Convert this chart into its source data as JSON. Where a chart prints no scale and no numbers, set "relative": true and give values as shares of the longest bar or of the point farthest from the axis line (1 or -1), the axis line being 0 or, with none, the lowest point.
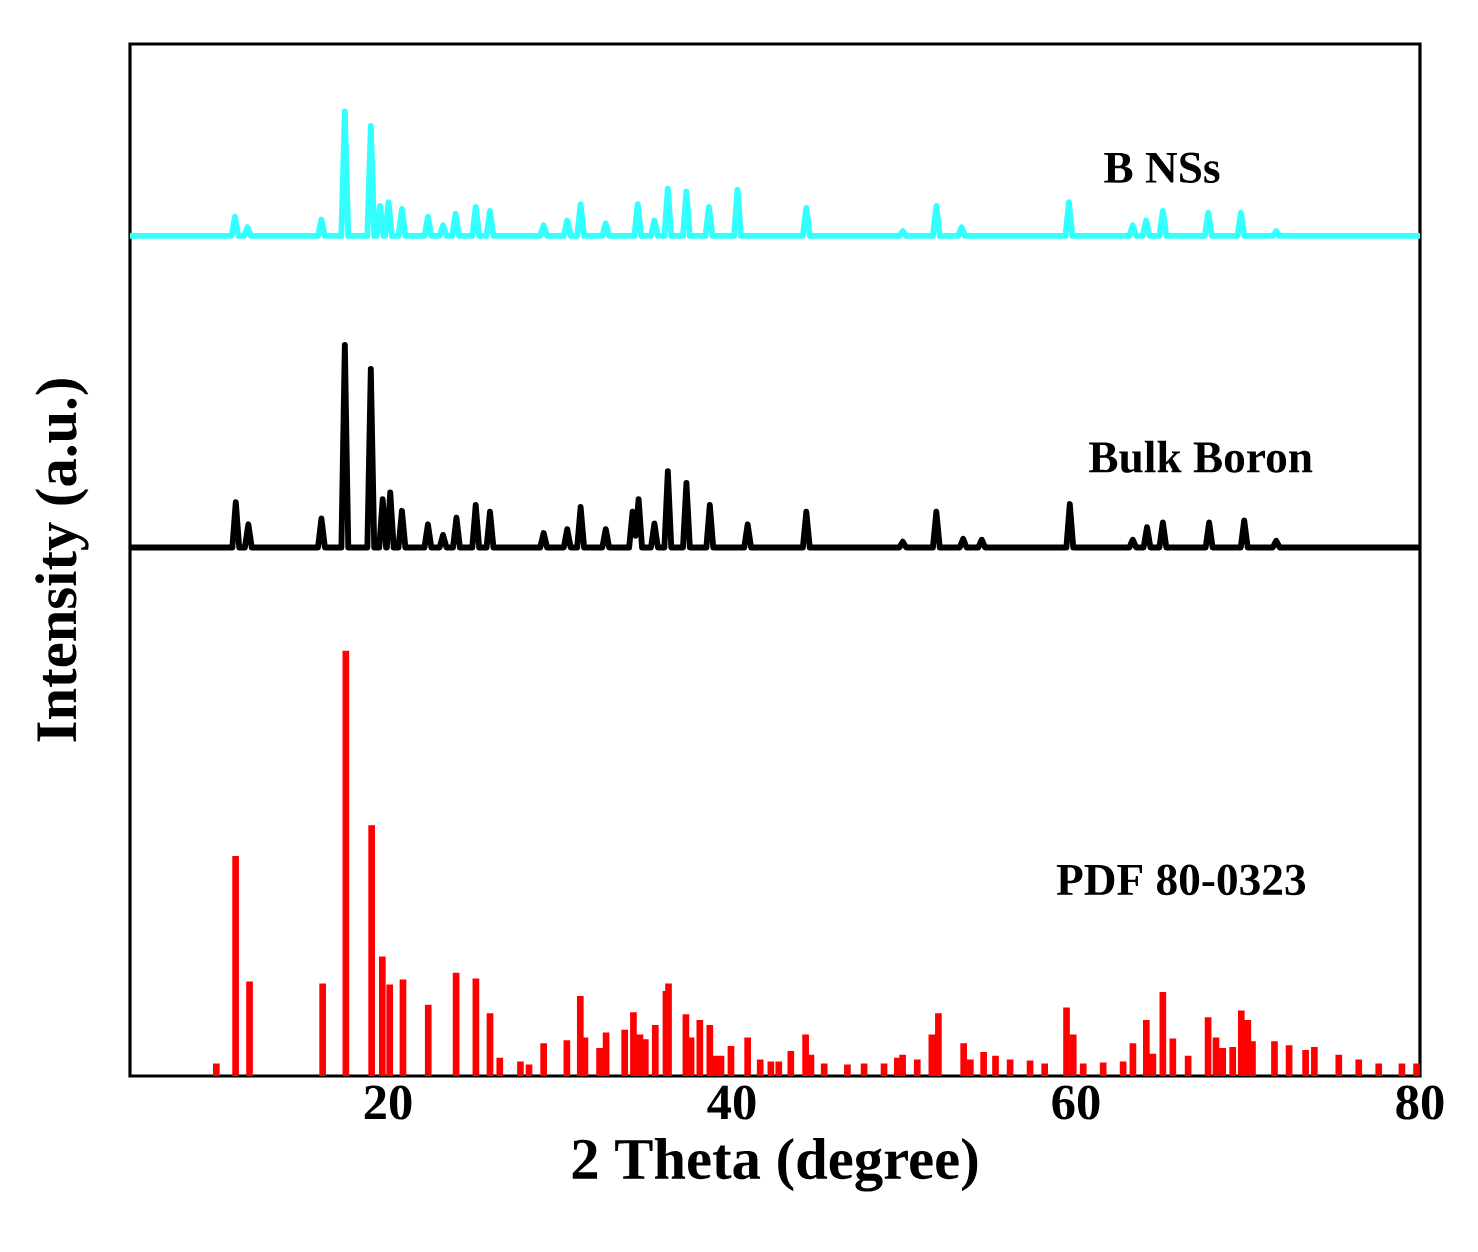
{
  "chart_data": {
    "type": "line",
    "relative": true,
    "xlabel": "2 Theta (degree)",
    "ylabel": "Intensity (a.u.)",
    "xlim": [
      5,
      80
    ],
    "xticks": [
      20,
      40,
      60,
      80
    ],
    "series": [
      {
        "name": "B NSs",
        "color": "#33ffff",
        "x": [
          5,
          10.9,
          11.1,
          11.3,
          11.63,
          11.83,
          12.03,
          15.93,
          16.13,
          16.33,
          17.29,
          17.49,
          17.69,
          18.8,
          19.0,
          19.2,
          19.34,
          19.54,
          19.74,
          19.83,
          20.03,
          20.23,
          20.61,
          20.81,
          21.01,
          22.12,
          22.32,
          22.52,
          23.0,
          23.2,
          23.4,
          23.73,
          23.93,
          24.13,
          24.9,
          25.1,
          25.3,
          25.73,
          25.93,
          26.13,
          28.85,
          29.05,
          29.25,
          30.22,
          30.42,
          30.62,
          31.0,
          31.2,
          31.4,
          32.46,
          32.66,
          32.86,
          34.32,
          34.52,
          34.72,
          35.29,
          35.49,
          35.69,
          36.07,
          36.27,
          36.47,
          37.15,
          37.35,
          37.55,
          38.46,
          38.66,
          38.86,
          40.12,
          40.32,
          40.52,
          44.12,
          44.32,
          44.52,
          49.73,
          49.93,
          50.13,
          51.68,
          51.88,
          52.08,
          53.15,
          53.35,
          53.55,
          59.39,
          59.59,
          59.79,
          63.1,
          63.3,
          63.5,
          63.88,
          64.08,
          64.28,
          64.85,
          65.05,
          65.25,
          67.49,
          67.69,
          67.89,
          69.39,
          69.59,
          69.79,
          71.44,
          71.64,
          71.84,
          80
        ],
        "values": [
          0.871,
          0.871,
          0.891,
          0.871,
          0.871,
          0.88,
          0.871,
          0.871,
          0.888,
          0.871,
          0.871,
          1.0,
          0.871,
          0.871,
          0.985,
          0.871,
          0.871,
          0.902,
          0.871,
          0.871,
          0.906,
          0.871,
          0.871,
          0.899,
          0.871,
          0.871,
          0.891,
          0.871,
          0.871,
          0.882,
          0.871,
          0.871,
          0.894,
          0.871,
          0.871,
          0.901,
          0.871,
          0.871,
          0.897,
          0.871,
          0.871,
          0.882,
          0.871,
          0.871,
          0.887,
          0.871,
          0.871,
          0.904,
          0.871,
          0.871,
          0.884,
          0.871,
          0.871,
          0.904,
          0.871,
          0.871,
          0.887,
          0.871,
          0.871,
          0.92,
          0.871,
          0.871,
          0.917,
          0.871,
          0.871,
          0.901,
          0.871,
          0.871,
          0.919,
          0.871,
          0.871,
          0.9,
          0.871,
          0.871,
          0.876,
          0.871,
          0.871,
          0.902,
          0.871,
          0.871,
          0.88,
          0.871,
          0.871,
          0.906,
          0.871,
          0.871,
          0.882,
          0.871,
          0.871,
          0.887,
          0.871,
          0.871,
          0.897,
          0.871,
          0.871,
          0.895,
          0.871,
          0.871,
          0.895,
          0.871,
          0.871,
          0.876,
          0.871,
          0.871
        ]
      },
      {
        "name": "Bulk Boron",
        "color": "#000000",
        "x": [
          5,
          10.95,
          11.15,
          11.35,
          11.68,
          11.88,
          12.08,
          15.93,
          16.13,
          16.33,
          17.29,
          17.49,
          17.69,
          18.8,
          19.0,
          19.2,
          19.49,
          19.69,
          19.89,
          19.93,
          20.13,
          20.33,
          20.61,
          20.81,
          21.01,
          22.12,
          22.32,
          22.52,
          23.0,
          23.2,
          23.4,
          23.78,
          23.98,
          24.18,
          24.9,
          25.1,
          25.3,
          25.73,
          25.93,
          26.13,
          28.85,
          29.05,
          29.25,
          30.22,
          30.42,
          30.62,
          31.0,
          31.2,
          31.4,
          32.46,
          32.66,
          32.86,
          34.02,
          34.22,
          34.4,
          34.57,
          34.77,
          35.29,
          35.49,
          35.69,
          36.07,
          36.27,
          36.47,
          37.15,
          37.35,
          37.55,
          38.51,
          38.71,
          38.91,
          40.71,
          40.91,
          41.11,
          44.12,
          44.32,
          44.52,
          49.73,
          49.93,
          50.13,
          51.68,
          51.88,
          52.08,
          53.24,
          53.44,
          53.64,
          54.32,
          54.52,
          54.72,
          59.44,
          59.64,
          59.84,
          63.1,
          63.3,
          63.5,
          63.93,
          64.13,
          64.33,
          64.85,
          65.05,
          65.25,
          67.54,
          67.74,
          67.94,
          69.58,
          69.78,
          69.98,
          71.44,
          71.64,
          71.84,
          80
        ],
        "values": [
          0.548,
          0.548,
          0.595,
          0.548,
          0.548,
          0.572,
          0.548,
          0.548,
          0.578,
          0.548,
          0.548,
          0.758,
          0.548,
          0.548,
          0.733,
          0.548,
          0.548,
          0.598,
          0.548,
          0.548,
          0.605,
          0.548,
          0.548,
          0.586,
          0.548,
          0.548,
          0.572,
          0.548,
          0.548,
          0.561,
          0.548,
          0.548,
          0.579,
          0.548,
          0.548,
          0.592,
          0.548,
          0.548,
          0.585,
          0.548,
          0.548,
          0.563,
          0.548,
          0.548,
          0.567,
          0.548,
          0.548,
          0.59,
          0.548,
          0.548,
          0.567,
          0.548,
          0.548,
          0.585,
          0.56,
          0.598,
          0.548,
          0.548,
          0.573,
          0.548,
          0.548,
          0.627,
          0.548,
          0.548,
          0.615,
          0.548,
          0.548,
          0.592,
          0.548,
          0.548,
          0.572,
          0.548,
          0.548,
          0.585,
          0.548,
          0.548,
          0.554,
          0.548,
          0.548,
          0.585,
          0.548,
          0.548,
          0.557,
          0.548,
          0.548,
          0.556,
          0.548,
          0.548,
          0.593,
          0.548,
          0.548,
          0.556,
          0.548,
          0.548,
          0.569,
          0.548,
          0.548,
          0.574,
          0.548,
          0.548,
          0.574,
          0.548,
          0.548,
          0.576,
          0.548,
          0.548,
          0.555,
          0.548,
          0.548
        ]
      },
      {
        "name": "PDF 80-0323",
        "color": "#ff0000",
        "type": "bar",
        "x": [
          10.02,
          11.14,
          11.95,
          16.2,
          17.55,
          19.05,
          19.67,
          20.1,
          20.87,
          22.34,
          23.96,
          25.11,
          25.93,
          26.5,
          27.7,
          28.2,
          29.05,
          30.4,
          31.18,
          31.45,
          32.3,
          32.68,
          33.76,
          34.27,
          34.65,
          34.96,
          35.54,
          36.16,
          36.31,
          37.32,
          37.62,
          38.13,
          38.71,
          39.09,
          39.36,
          39.94,
          40.91,
          41.64,
          42.26,
          42.72,
          43.42,
          44.28,
          44.59,
          45.36,
          46.71,
          47.68,
          48.84,
          49.61,
          49.92,
          50.77,
          51.62,
          52.0,
          53.47,
          53.86,
          54.63,
          55.32,
          56.17,
          57.33,
          58.18,
          59.45,
          59.84,
          60.42,
          61.58,
          62.74,
          63.31,
          64.09,
          64.47,
          65.05,
          65.63,
          66.52,
          67.68,
          68.14,
          68.53,
          69.11,
          69.61,
          69.99,
          70.26,
          71.54,
          72.39,
          73.35,
          73.86,
          75.28,
          76.44,
          77.6,
          78.95,
          79.8
        ],
        "values": [
          0.013,
          0.228,
          0.098,
          0.096,
          0.441,
          0.26,
          0.124,
          0.095,
          0.1,
          0.074,
          0.107,
          0.101,
          0.065,
          0.019,
          0.015,
          0.012,
          0.034,
          0.037,
          0.083,
          0.04,
          0.029,
          0.045,
          0.048,
          0.066,
          0.043,
          0.038,
          0.053,
          0.088,
          0.096,
          0.064,
          0.04,
          0.058,
          0.053,
          0.021,
          0.021,
          0.031,
          0.04,
          0.017,
          0.015,
          0.015,
          0.026,
          0.043,
          0.022,
          0.013,
          0.012,
          0.013,
          0.013,
          0.019,
          0.022,
          0.017,
          0.043,
          0.065,
          0.034,
          0.017,
          0.025,
          0.021,
          0.017,
          0.016,
          0.013,
          0.071,
          0.043,
          0.013,
          0.014,
          0.015,
          0.034,
          0.058,
          0.023,
          0.087,
          0.039,
          0.021,
          0.061,
          0.04,
          0.029,
          0.03,
          0.068,
          0.058,
          0.036,
          0.036,
          0.032,
          0.027,
          0.03,
          0.022,
          0.017,
          0.013,
          0.013,
          0.013
        ]
      }
    ]
  }
}
